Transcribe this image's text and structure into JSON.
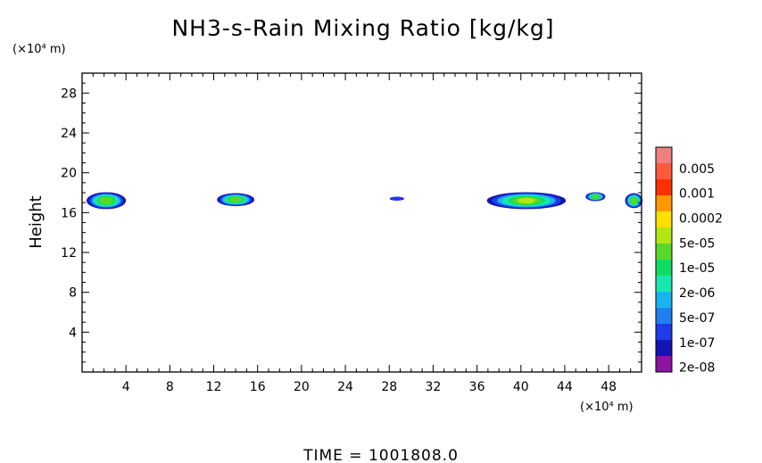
{
  "chart_data": {
    "type": "heatmap",
    "title": "NH3-s-Rain Mixing Ratio [kg/kg]",
    "ylabel": "Height",
    "y_unit": "(×10⁴ m)",
    "x_unit": "(×10⁴ m)",
    "xlim": [
      0,
      51
    ],
    "ylim": [
      0,
      30
    ],
    "x_ticks": [
      4,
      8,
      12,
      16,
      20,
      24,
      28,
      32,
      36,
      40,
      44,
      48
    ],
    "y_ticks": [
      4,
      8,
      12,
      16,
      20,
      24,
      28
    ],
    "footer": "TIME = 1001808.0",
    "colorbar": {
      "labels": [
        "0.005",
        "0.001",
        "0.0002",
        "5e-05",
        "1e-05",
        "2e-06",
        "5e-07",
        "1e-07",
        "2e-08"
      ],
      "colors": [
        "#f08080",
        "#ff5a3c",
        "#ff3000",
        "#ff9800",
        "#ffe000",
        "#b4e614",
        "#58d828",
        "#10dc64",
        "#18e8b0",
        "#18b4f0",
        "#2080f0",
        "#1e3ce8",
        "#1414b4",
        "#8c14a0"
      ]
    },
    "regions": [
      {
        "x_center": 2.2,
        "x_width": 3.6,
        "y_center": 17.2,
        "y_height": 1.7,
        "peak": "1e-05"
      },
      {
        "x_center": 14.0,
        "x_width": 3.4,
        "y_center": 17.3,
        "y_height": 1.3,
        "peak": "1e-05"
      },
      {
        "x_center": 28.7,
        "x_width": 1.3,
        "y_center": 17.4,
        "y_height": 0.4,
        "peak": "1e-07"
      },
      {
        "x_center": 40.5,
        "x_width": 7.2,
        "y_center": 17.2,
        "y_height": 1.7,
        "peak": "5e-05"
      },
      {
        "x_center": 46.8,
        "x_width": 1.8,
        "y_center": 17.6,
        "y_height": 0.9,
        "peak": "1e-05"
      },
      {
        "x_center": 50.3,
        "x_width": 1.6,
        "y_center": 17.2,
        "y_height": 1.5,
        "peak": "1e-05"
      }
    ]
  }
}
